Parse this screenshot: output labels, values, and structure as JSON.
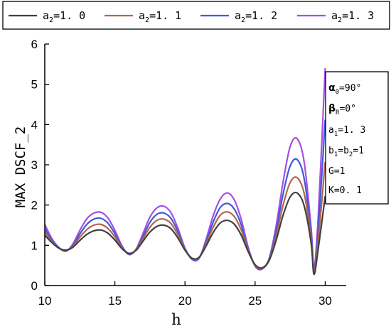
{
  "chart_data": {
    "type": "line",
    "xlabel": "h",
    "ylabel": "MAX DSCF_2",
    "xlim": [
      10,
      31.5
    ],
    "ylim": [
      0,
      6
    ],
    "xticks": [
      10,
      15,
      20,
      25,
      30
    ],
    "yticks": [
      0,
      1,
      2,
      3,
      4,
      5,
      6
    ],
    "grid": false,
    "legend_position": "top",
    "series": [
      {
        "name": "a2=1.0",
        "name_parts": [
          "a",
          "2",
          "=1. 0"
        ],
        "color": "#404040",
        "x": [
          10,
          10.5,
          11,
          11.5,
          12,
          12.5,
          13,
          13.5,
          14,
          14.5,
          15,
          15.5,
          16,
          16.5,
          17,
          17.5,
          18,
          18.5,
          19,
          19.5,
          20,
          20.5,
          21,
          21.5,
          22,
          22.5,
          23,
          23.5,
          24,
          24.5,
          25,
          25.5,
          26,
          26.5,
          27,
          27.5,
          28,
          28.5,
          29,
          29.2,
          29.5,
          30
        ],
        "y": [
          1.25,
          1.07,
          0.93,
          0.88,
          0.95,
          1.12,
          1.27,
          1.36,
          1.38,
          1.3,
          1.13,
          0.92,
          0.8,
          0.87,
          1.1,
          1.33,
          1.47,
          1.5,
          1.41,
          1.18,
          0.88,
          0.68,
          0.7,
          0.98,
          1.31,
          1.55,
          1.62,
          1.53,
          1.26,
          0.85,
          0.52,
          0.44,
          0.62,
          1.12,
          1.75,
          2.2,
          2.3,
          1.98,
          1.05,
          0.28,
          0.9,
          2.22
        ]
      },
      {
        "name": "a2=1.1",
        "name_parts": [
          "a",
          "2",
          "=1. 1"
        ],
        "color": "#b5654a",
        "x": [
          10,
          10.5,
          11,
          11.5,
          12,
          12.5,
          13,
          13.5,
          14,
          14.5,
          15,
          15.5,
          16,
          16.5,
          17,
          17.5,
          18,
          18.5,
          19,
          19.5,
          20,
          20.5,
          21,
          21.5,
          22,
          22.5,
          23,
          23.5,
          24,
          24.5,
          25,
          25.5,
          26,
          26.5,
          27,
          27.5,
          28,
          28.5,
          29,
          29.2,
          29.5,
          30
        ],
        "y": [
          1.33,
          1.1,
          0.93,
          0.87,
          0.98,
          1.2,
          1.39,
          1.5,
          1.52,
          1.42,
          1.21,
          0.94,
          0.79,
          0.88,
          1.16,
          1.45,
          1.62,
          1.65,
          1.54,
          1.26,
          0.89,
          0.67,
          0.69,
          1.03,
          1.44,
          1.74,
          1.83,
          1.72,
          1.39,
          0.88,
          0.5,
          0.43,
          0.63,
          1.23,
          2.0,
          2.56,
          2.68,
          2.29,
          1.15,
          0.34,
          1.1,
          3.07
        ]
      },
      {
        "name": "a2=1.2",
        "name_parts": [
          "a",
          "2",
          "=1. 2"
        ],
        "color": "#3c5cd4",
        "x": [
          10,
          10.5,
          11,
          11.5,
          12,
          12.5,
          13,
          13.5,
          14,
          14.5,
          15,
          15.5,
          16,
          16.5,
          17,
          17.5,
          18,
          18.5,
          19,
          19.5,
          20,
          20.5,
          21,
          21.5,
          22,
          22.5,
          23,
          23.5,
          24,
          24.5,
          25,
          25.5,
          26,
          26.5,
          27,
          27.5,
          28,
          28.5,
          29,
          29.2,
          29.5,
          30
        ],
        "y": [
          1.42,
          1.13,
          0.94,
          0.86,
          1.0,
          1.28,
          1.52,
          1.65,
          1.67,
          1.55,
          1.29,
          0.97,
          0.78,
          0.89,
          1.22,
          1.57,
          1.77,
          1.8,
          1.67,
          1.34,
          0.91,
          0.66,
          0.68,
          1.08,
          1.57,
          1.93,
          2.04,
          1.91,
          1.52,
          0.92,
          0.49,
          0.42,
          0.65,
          1.35,
          2.28,
          2.97,
          3.13,
          2.66,
          1.27,
          0.38,
          1.35,
          4.12
        ]
      },
      {
        "name": "a2=1.3",
        "name_parts": [
          "a",
          "2",
          "=1. 3"
        ],
        "color": "#a64ee8",
        "x": [
          10,
          10.5,
          11,
          11.5,
          12,
          12.5,
          13,
          13.5,
          14,
          14.5,
          15,
          15.5,
          16,
          16.5,
          17,
          17.5,
          18,
          18.5,
          19,
          19.5,
          20,
          20.5,
          21,
          21.5,
          22,
          22.5,
          23,
          23.5,
          24,
          24.5,
          25,
          25.5,
          26,
          26.5,
          27,
          27.5,
          28,
          28.5,
          29,
          29.2,
          29.5,
          30
        ],
        "y": [
          1.52,
          1.17,
          0.95,
          0.85,
          1.03,
          1.37,
          1.66,
          1.8,
          1.82,
          1.68,
          1.37,
          0.99,
          0.77,
          0.9,
          1.29,
          1.7,
          1.93,
          1.97,
          1.81,
          1.42,
          0.93,
          0.65,
          0.67,
          1.14,
          1.72,
          2.14,
          2.3,
          2.14,
          1.66,
          0.96,
          0.48,
          0.41,
          0.67,
          1.48,
          2.58,
          3.45,
          3.65,
          3.07,
          1.42,
          0.42,
          1.7,
          5.4
        ]
      }
    ]
  },
  "params": {
    "alpha0": {
      "symbol": "α",
      "sub": "0",
      "value": "=90°"
    },
    "betaR": {
      "symbol": "β",
      "sub": "R",
      "value": "=0°"
    },
    "a1": {
      "symbol": "a",
      "sub": "1",
      "value": "=1. 3"
    },
    "b1b2": {
      "symbol": "b",
      "sub": "1",
      "mid": "=b",
      "sub2": "2",
      "value": "=1"
    },
    "G": "G=1",
    "K": "K=0. 1"
  }
}
